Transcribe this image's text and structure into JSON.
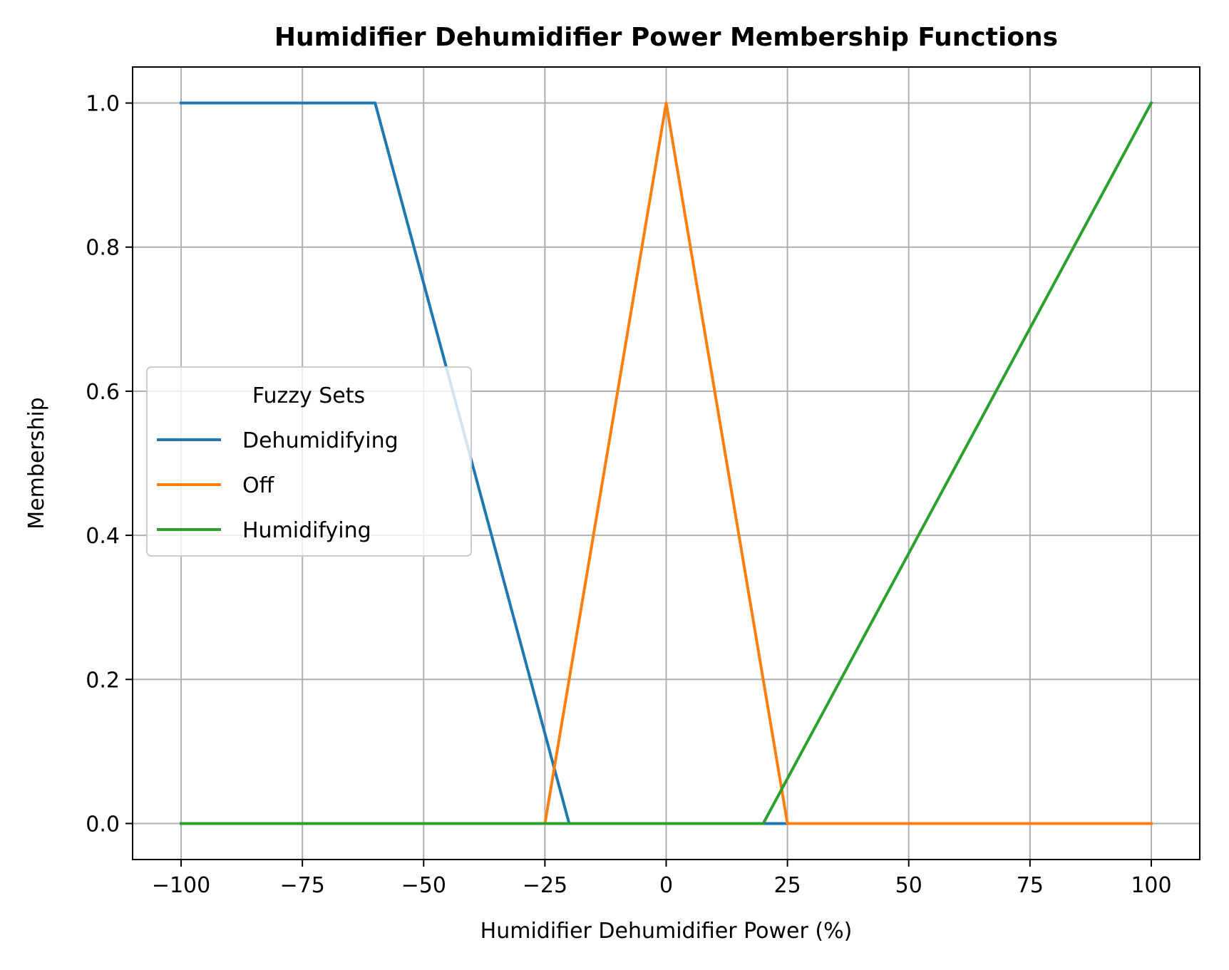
{
  "chart_data": {
    "type": "line",
    "title": "Humidifier Dehumidifier Power Membership Functions",
    "xlabel": "Humidifier Dehumidifier Power (%)",
    "ylabel": "Membership",
    "xlim": [
      -110,
      110
    ],
    "ylim": [
      -0.05,
      1.05
    ],
    "xticks": [
      -100,
      -75,
      -50,
      -25,
      0,
      25,
      50,
      75,
      100
    ],
    "xtick_labels": [
      "−100",
      "−75",
      "−50",
      "−25",
      "0",
      "25",
      "50",
      "75",
      "100"
    ],
    "yticks": [
      0.0,
      0.2,
      0.4,
      0.6,
      0.8,
      1.0
    ],
    "ytick_labels": [
      "0.0",
      "0.2",
      "0.4",
      "0.6",
      "0.8",
      "1.0"
    ],
    "grid": true,
    "legend": {
      "title": "Fuzzy Sets",
      "placement": "center-left"
    },
    "series": [
      {
        "name": "Dehumidifying",
        "color": "#1f77b4",
        "x": [
          -100,
          -60,
          -20,
          100
        ],
        "y": [
          1,
          1,
          0,
          0
        ]
      },
      {
        "name": "Off",
        "color": "#ff7f0e",
        "x": [
          -100,
          -25,
          0,
          25,
          100
        ],
        "y": [
          0,
          0,
          1,
          0,
          0
        ]
      },
      {
        "name": "Humidifying",
        "color": "#2ca02c",
        "x": [
          -100,
          20,
          100
        ],
        "y": [
          0,
          0,
          1
        ]
      }
    ]
  }
}
